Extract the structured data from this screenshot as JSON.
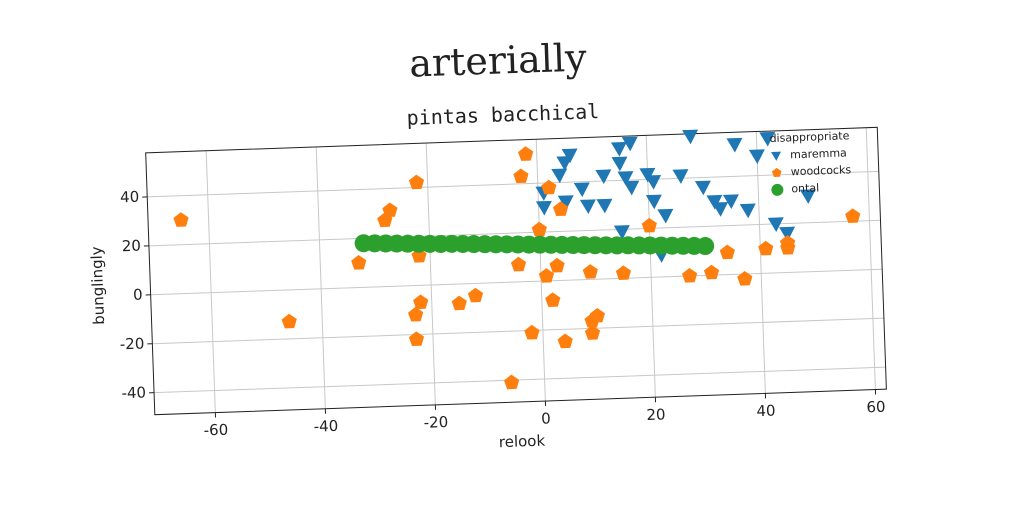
{
  "chart_data": {
    "type": "scatter",
    "title": "arterially",
    "subtitle": "pintas bacchical",
    "xlabel": "relook",
    "ylabel": "bunglingly",
    "legend_title": "disappropriate",
    "legend_loc": "upper right",
    "grid": true,
    "xlim": [
      -71,
      62
    ],
    "ylim": [
      -49,
      58
    ],
    "xticks": [
      -60,
      -40,
      -20,
      0,
      20,
      40,
      60
    ],
    "yticks": [
      -40,
      -20,
      0,
      20,
      40
    ],
    "series": [
      {
        "name": "maremma",
        "color": "#1f77b4",
        "marker": "triangle-down",
        "x": [
          1,
          1,
          4,
          5,
          6,
          5,
          8,
          9,
          12,
          12,
          15,
          15,
          17,
          16,
          17,
          20,
          21,
          21,
          23,
          26,
          28,
          15,
          22,
          32,
          33,
          36,
          38,
          40,
          43,
          45,
          49,
          42,
          35,
          30
        ],
        "y": [
          30,
          36,
          43,
          48,
          51,
          32,
          37,
          30,
          30,
          42,
          47,
          53,
          55,
          41,
          37,
          42,
          39,
          31,
          25,
          41,
          57,
          19,
          9,
          30,
          27,
          53,
          26,
          48,
          20,
          16,
          31,
          55,
          30,
          36
        ]
      },
      {
        "name": "woodcocks",
        "color": "#ff7f0e",
        "marker": "pentagon",
        "x": [
          -65,
          -46,
          -33,
          -28,
          -27,
          -22,
          -22,
          -22,
          -23,
          -23,
          -15,
          -12,
          -6,
          -4,
          -2,
          -2,
          -3,
          0,
          1,
          2,
          3,
          2,
          4,
          4,
          9,
          9,
          10,
          9,
          15,
          20,
          27,
          31,
          34,
          37,
          41,
          45,
          45,
          57
        ],
        "y": [
          30,
          -13,
          10,
          27,
          31,
          42,
          12,
          -7,
          -12,
          -22,
          -8,
          -5,
          -41,
          7,
          -21,
          52,
          43,
          21,
          2,
          -8,
          6,
          38,
          29,
          -25,
          3,
          -17,
          -15,
          -22,
          2,
          21,
          0,
          1,
          9,
          -2,
          10,
          12,
          10,
          22
        ]
      },
      {
        "name": "ontal",
        "color": "#2ca02c",
        "marker": "circle",
        "x": [
          -32,
          -30,
          -28,
          -26,
          -24,
          -22,
          -20,
          -18,
          -16,
          -14,
          -12,
          -10,
          -8,
          -6,
          -4,
          -2,
          0,
          2,
          4,
          6,
          8,
          10,
          12,
          14,
          16,
          18,
          20,
          22,
          24,
          26,
          28,
          30
        ],
        "y": [
          18,
          17.8,
          17.6,
          17.4,
          17.2,
          17.0,
          16.8,
          16.6,
          16.5,
          16.3,
          16.1,
          15.9,
          15.7,
          15.5,
          15.3,
          15.1,
          14.9,
          14.7,
          14.5,
          14.3,
          14.1,
          13.9,
          13.7,
          13.5,
          13.4,
          13.2,
          13.0,
          12.8,
          12.6,
          12.4,
          12.2,
          12.0
        ]
      }
    ]
  }
}
